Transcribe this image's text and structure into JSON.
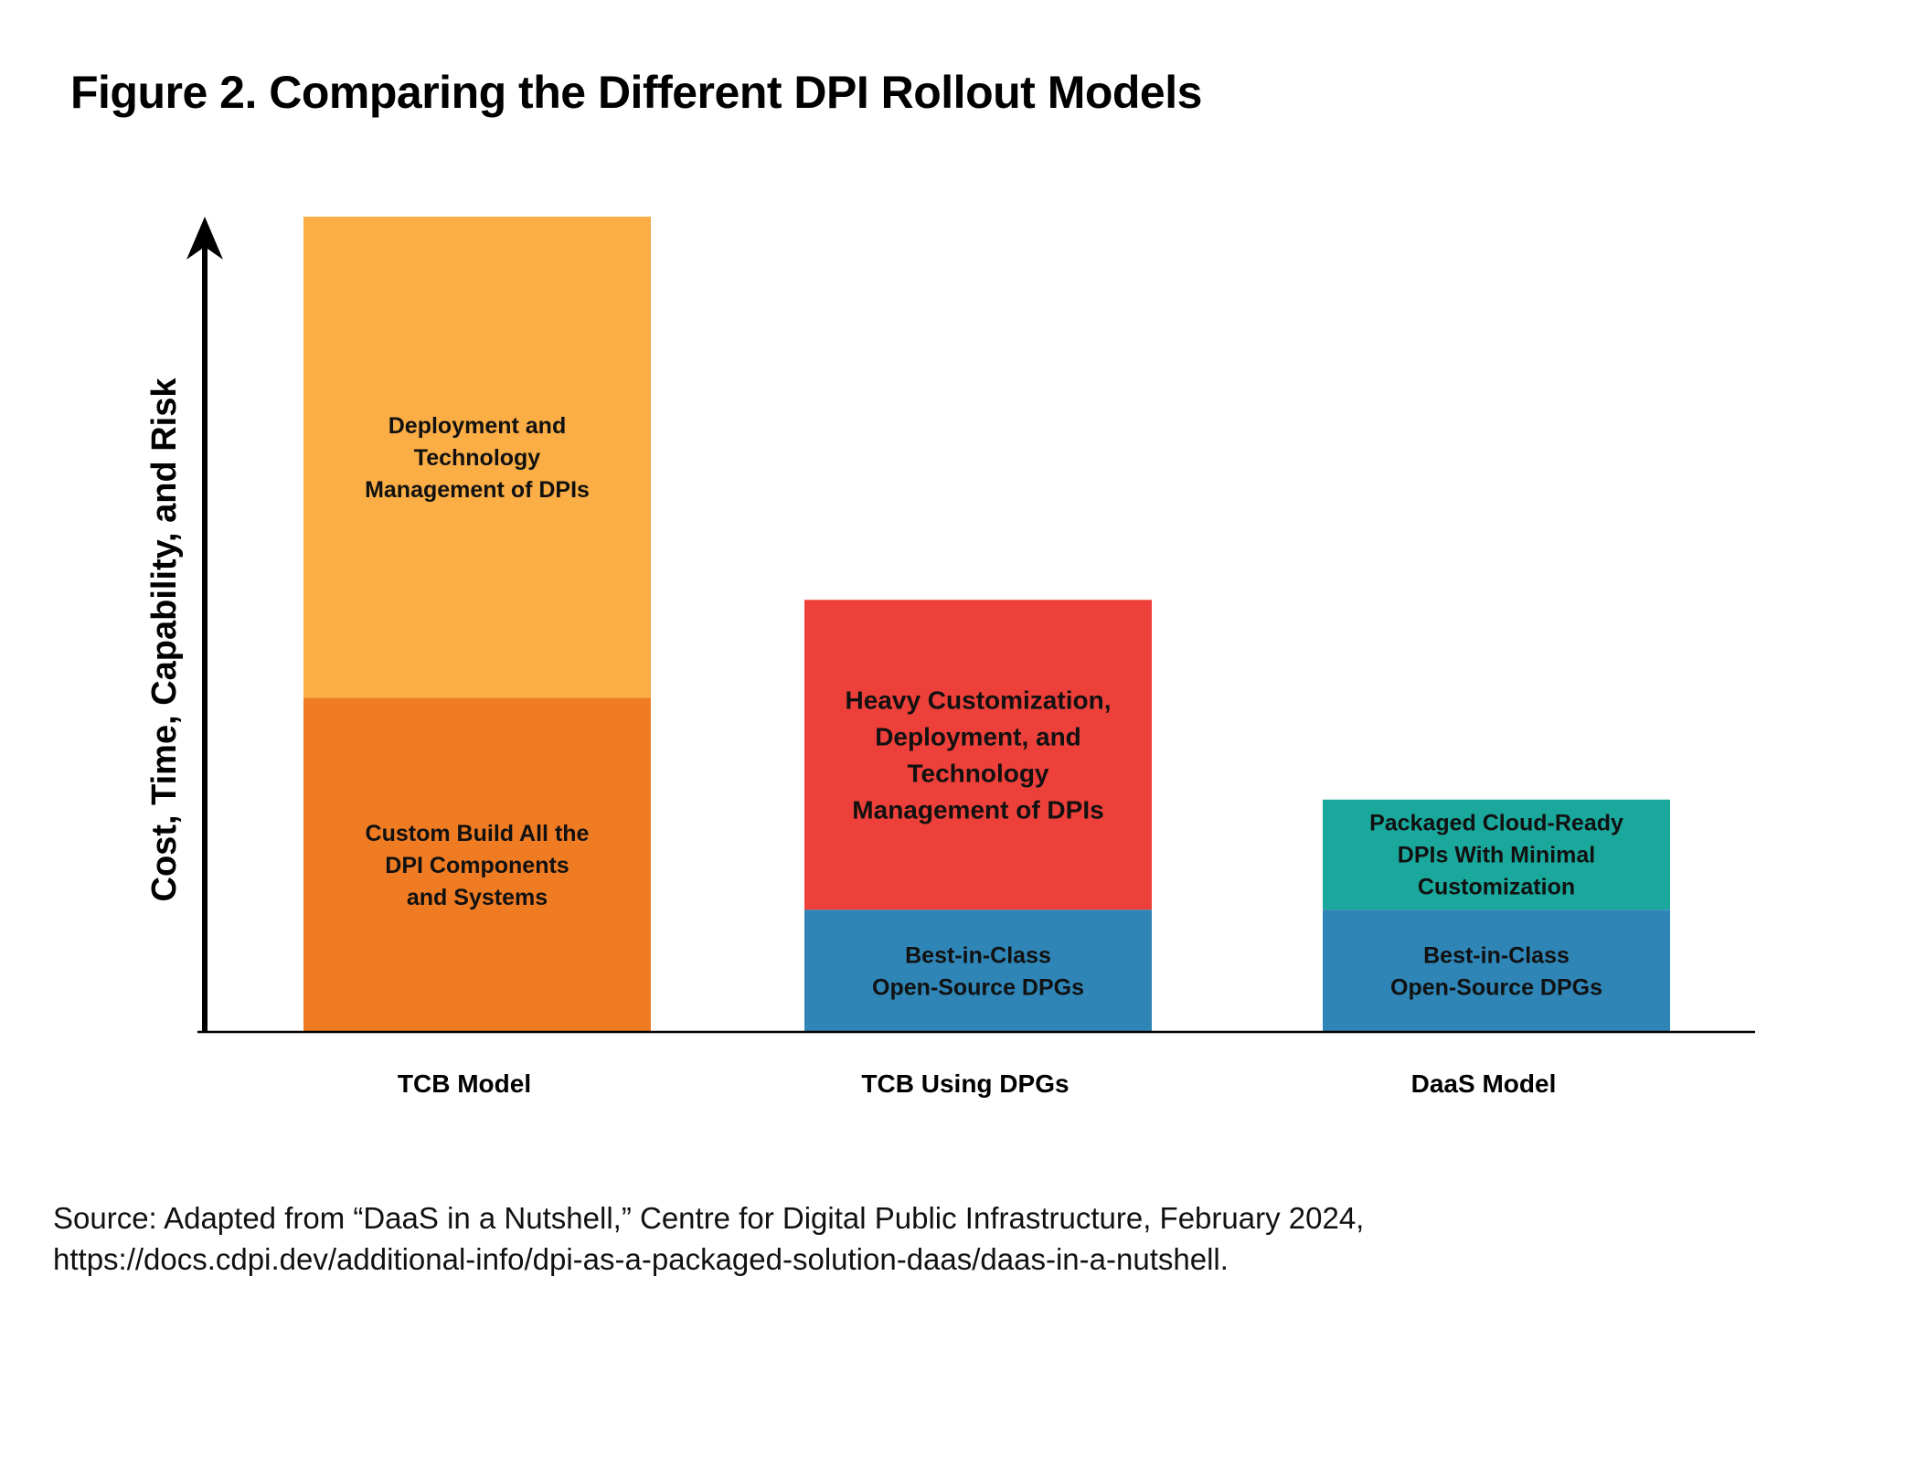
{
  "title": "Figure 2. Comparing the Different DPI Rollout Models",
  "source": {
    "line1": "Source: Adapted from “DaaS in a Nutshell,” Centre for Digital Public Infrastructure, February 2024,",
    "line2": "https://docs.cdpi.dev/additional-info/dpi-as-a-packaged-solution-daas/daas-in-a-nutshell."
  },
  "chart_data": {
    "type": "bar",
    "stacked": true,
    "ylabel": "Cost, Time, Capability, and Risk",
    "xlabel": "",
    "grid": false,
    "legend": "none",
    "ylim": [
      0,
      100
    ],
    "categories": [
      "TCB Model",
      "TCB Using DPGs",
      "DaaS Model"
    ],
    "bars": [
      {
        "category": "TCB Model",
        "segments": [
          {
            "lines": [
              "Custom Build All the",
              "DPI Components",
              "and Systems"
            ],
            "value": 41,
            "color": "#EF7B23"
          },
          {
            "lines": [
              "Deployment and",
              "Technology",
              "Management of DPIs"
            ],
            "value": 59,
            "color": "#FBAE45"
          }
        ]
      },
      {
        "category": "TCB Using DPGs",
        "segments": [
          {
            "lines": [
              "Best-in-Class",
              "Open-Source DPGs"
            ],
            "value": 15,
            "color": "#2E85B6"
          },
          {
            "lines": [
              "Heavy Customization,",
              "Deployment, and",
              "Technology",
              "Management of DPIs"
            ],
            "value": 38,
            "color": "#EE403A"
          }
        ]
      },
      {
        "category": "DaaS Model",
        "segments": [
          {
            "lines": [
              "Best-in-Class",
              "Open-Source DPGs"
            ],
            "value": 15,
            "color": "#2E85B6"
          },
          {
            "lines": [
              "Packaged Cloud-Ready",
              "DPIs With Minimal",
              "Customization"
            ],
            "value": 13.5,
            "color": "#1BA89C"
          }
        ]
      }
    ]
  }
}
